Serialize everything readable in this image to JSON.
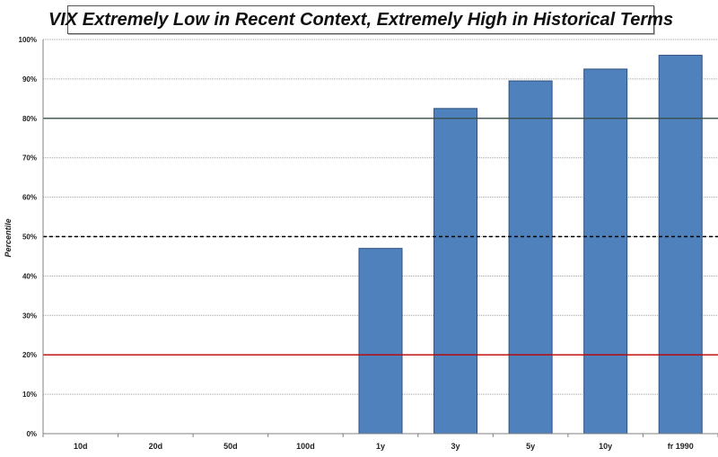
{
  "chart_data": {
    "type": "bar",
    "title": "VIX Extremely Low in Recent Context, Extremely High in Historical Terms",
    "xlabel": "",
    "ylabel": "Percentile",
    "categories": [
      "10d",
      "20d",
      "50d",
      "100d",
      "1y",
      "3y",
      "5y",
      "10y",
      "fr 1990"
    ],
    "values": [
      0,
      0,
      0,
      0,
      47,
      82.5,
      89.5,
      92.5,
      96
    ],
    "ylim": [
      0,
      100
    ],
    "yticks": [
      "0%",
      "10%",
      "20%",
      "30%",
      "40%",
      "50%",
      "60%",
      "70%",
      "80%",
      "90%",
      "100%"
    ],
    "grid": true,
    "legend": "none",
    "reference_lines": [
      {
        "value": 80,
        "color": "#3a4f4a",
        "style": "solid"
      },
      {
        "value": 50,
        "color": "#000000",
        "style": "dashed"
      },
      {
        "value": 20,
        "color": "#c00000",
        "style": "solid"
      }
    ],
    "colors": {
      "bar": "#4f81bd",
      "bar_border": "#2f4f7f",
      "grid": "#a0a0a0"
    }
  }
}
